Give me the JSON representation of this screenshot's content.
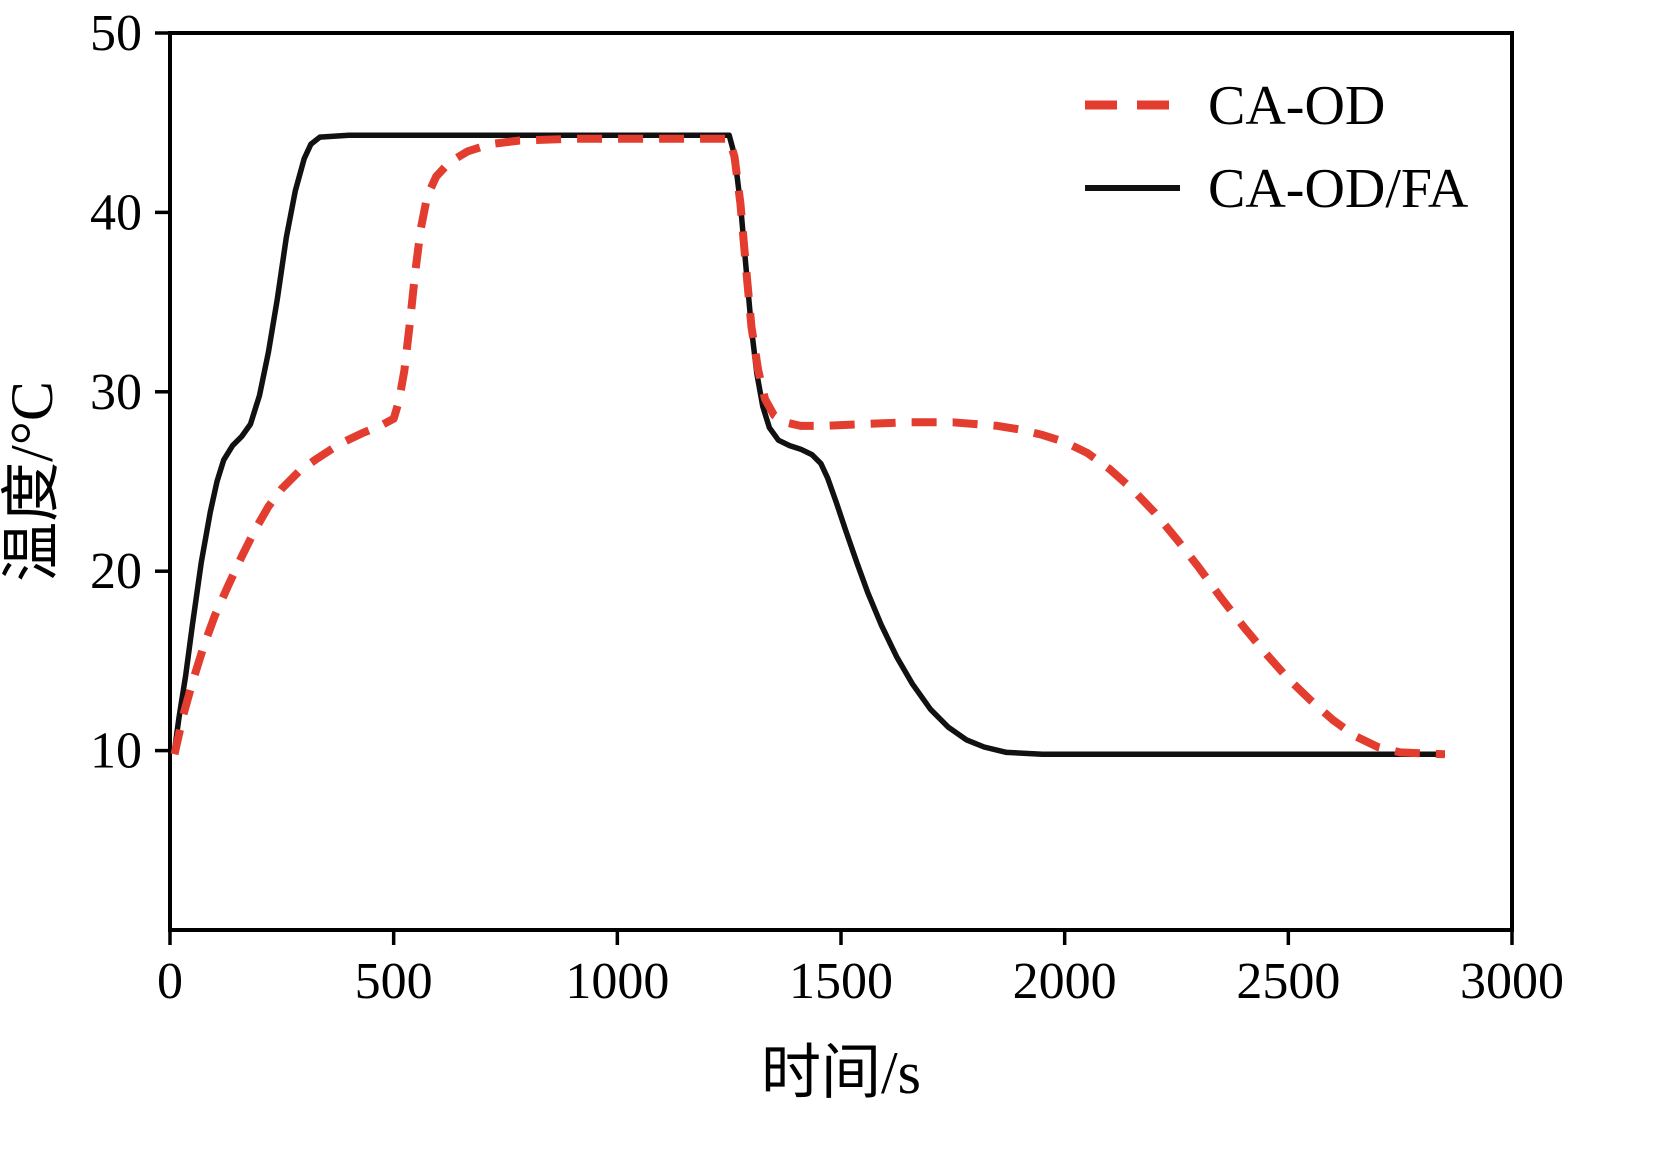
{
  "chart_data": {
    "type": "line",
    "title": "",
    "xlabel": "时间/s",
    "ylabel": "温度/°C",
    "xlim": [
      0,
      3000
    ],
    "ylim": [
      0,
      50
    ],
    "xticks": [
      0,
      500,
      1000,
      1500,
      2000,
      2500,
      3000
    ],
    "yticks": [
      10,
      20,
      30,
      40,
      50
    ],
    "grid": false,
    "legend_position": "top-right",
    "frame_color": "#000000",
    "series": [
      {
        "name": "CA-OD/FA",
        "color": "#111111",
        "style": "solid",
        "line_width": 5.5,
        "points": [
          [
            10,
            10.0
          ],
          [
            20,
            11.8
          ],
          [
            35,
            14.2
          ],
          [
            50,
            17.0
          ],
          [
            70,
            20.5
          ],
          [
            90,
            23.3
          ],
          [
            105,
            25.0
          ],
          [
            120,
            26.2
          ],
          [
            140,
            27.0
          ],
          [
            160,
            27.5
          ],
          [
            180,
            28.2
          ],
          [
            200,
            29.8
          ],
          [
            220,
            32.2
          ],
          [
            240,
            35.2
          ],
          [
            260,
            38.6
          ],
          [
            280,
            41.2
          ],
          [
            300,
            43.0
          ],
          [
            315,
            43.8
          ],
          [
            335,
            44.2
          ],
          [
            400,
            44.3
          ],
          [
            600,
            44.3
          ],
          [
            800,
            44.3
          ],
          [
            1000,
            44.3
          ],
          [
            1150,
            44.3
          ],
          [
            1250,
            44.3
          ],
          [
            1262,
            43.2
          ],
          [
            1275,
            40.5
          ],
          [
            1288,
            36.8
          ],
          [
            1300,
            33.5
          ],
          [
            1312,
            31.0
          ],
          [
            1325,
            29.2
          ],
          [
            1340,
            28.0
          ],
          [
            1360,
            27.3
          ],
          [
            1385,
            27.0
          ],
          [
            1410,
            26.8
          ],
          [
            1435,
            26.5
          ],
          [
            1455,
            26.0
          ],
          [
            1470,
            25.2
          ],
          [
            1490,
            23.8
          ],
          [
            1510,
            22.3
          ],
          [
            1535,
            20.5
          ],
          [
            1560,
            18.8
          ],
          [
            1590,
            17.0
          ],
          [
            1625,
            15.2
          ],
          [
            1660,
            13.7
          ],
          [
            1700,
            12.3
          ],
          [
            1740,
            11.3
          ],
          [
            1780,
            10.6
          ],
          [
            1820,
            10.2
          ],
          [
            1870,
            9.9
          ],
          [
            1950,
            9.8
          ],
          [
            2100,
            9.8
          ],
          [
            2300,
            9.8
          ],
          [
            2500,
            9.8
          ],
          [
            2700,
            9.8
          ],
          [
            2850,
            9.8
          ]
        ]
      },
      {
        "name": "CA-OD",
        "color": "#e23d2e",
        "style": "dashed",
        "line_width": 8,
        "points": [
          [
            10,
            9.8
          ],
          [
            30,
            12.0
          ],
          [
            50,
            13.8
          ],
          [
            75,
            15.8
          ],
          [
            100,
            17.5
          ],
          [
            130,
            19.2
          ],
          [
            160,
            20.8
          ],
          [
            190,
            22.3
          ],
          [
            220,
            23.6
          ],
          [
            250,
            24.6
          ],
          [
            290,
            25.6
          ],
          [
            330,
            26.3
          ],
          [
            380,
            27.1
          ],
          [
            430,
            27.7
          ],
          [
            470,
            28.1
          ],
          [
            500,
            28.5
          ],
          [
            512,
            29.5
          ],
          [
            524,
            31.2
          ],
          [
            536,
            33.8
          ],
          [
            548,
            36.6
          ],
          [
            560,
            39.0
          ],
          [
            575,
            40.9
          ],
          [
            595,
            42.0
          ],
          [
            625,
            42.8
          ],
          [
            665,
            43.4
          ],
          [
            715,
            43.8
          ],
          [
            780,
            44.0
          ],
          [
            900,
            44.1
          ],
          [
            1100,
            44.1
          ],
          [
            1250,
            44.1
          ],
          [
            1262,
            43.1
          ],
          [
            1275,
            40.5
          ],
          [
            1288,
            36.8
          ],
          [
            1300,
            33.6
          ],
          [
            1315,
            31.2
          ],
          [
            1330,
            29.6
          ],
          [
            1350,
            28.7
          ],
          [
            1375,
            28.3
          ],
          [
            1410,
            28.1
          ],
          [
            1460,
            28.1
          ],
          [
            1550,
            28.2
          ],
          [
            1650,
            28.3
          ],
          [
            1750,
            28.3
          ],
          [
            1850,
            28.1
          ],
          [
            1900,
            27.9
          ],
          [
            1950,
            27.6
          ],
          [
            2000,
            27.2
          ],
          [
            2050,
            26.6
          ],
          [
            2100,
            25.7
          ],
          [
            2150,
            24.6
          ],
          [
            2200,
            23.3
          ],
          [
            2250,
            21.8
          ],
          [
            2300,
            20.2
          ],
          [
            2350,
            18.5
          ],
          [
            2400,
            16.9
          ],
          [
            2450,
            15.4
          ],
          [
            2500,
            14.0
          ],
          [
            2550,
            12.8
          ],
          [
            2600,
            11.7
          ],
          [
            2650,
            10.8
          ],
          [
            2700,
            10.2
          ],
          [
            2750,
            9.9
          ],
          [
            2850,
            9.8
          ]
        ]
      }
    ],
    "legend_items": [
      {
        "label": "CA-OD",
        "color": "#e23d2e",
        "style": "dashed"
      },
      {
        "label": "CA-OD/FA",
        "color": "#111111",
        "style": "solid"
      }
    ]
  }
}
